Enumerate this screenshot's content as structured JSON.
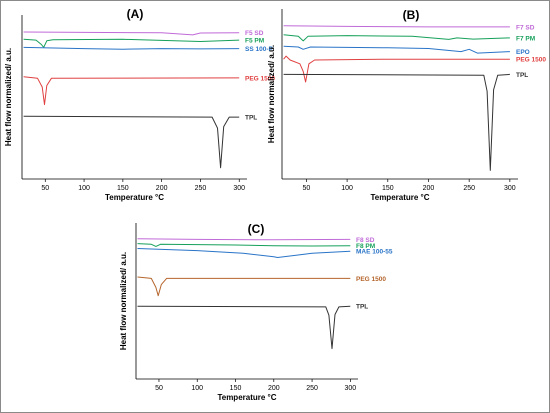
{
  "chart_data": [
    {
      "type": "line",
      "panel_label": "(A)",
      "xlabel": "Temperature °C",
      "ylabel": "Heat flow normalized/ a.u.",
      "xlim": [
        20,
        310
      ],
      "xticks": [
        50,
        100,
        150,
        200,
        250,
        300
      ],
      "grid": false,
      "series": [
        {
          "name": "F5 SD",
          "color": "#c06ad8",
          "x": [
            22,
            100,
            200,
            240,
            250,
            300
          ],
          "y": [
            9.75,
            9.72,
            9.7,
            9.55,
            9.68,
            9.7
          ]
        },
        {
          "name": "F5 PM",
          "color": "#16a05a",
          "x": [
            22,
            38,
            45,
            48,
            52,
            60,
            150,
            250,
            300
          ],
          "y": [
            9.25,
            9.2,
            8.9,
            8.7,
            9.15,
            9.22,
            9.25,
            9.1,
            9.2
          ]
        },
        {
          "name": "SS 100-P",
          "color": "#2a74c8",
          "x": [
            22,
            100,
            150,
            200,
            250,
            300
          ],
          "y": [
            8.7,
            8.62,
            8.58,
            8.62,
            8.6,
            8.62
          ]
        },
        {
          "name": "PEG 1500",
          "color": "#e04040",
          "x": [
            22,
            40,
            46,
            49,
            52,
            58,
            300
          ],
          "y": [
            6.7,
            6.6,
            6.0,
            4.8,
            6.1,
            6.6,
            6.62
          ]
        },
        {
          "name": "TPL",
          "color": "#333333",
          "x": [
            22,
            265,
            272,
            276,
            280,
            287,
            300
          ],
          "y": [
            4.0,
            3.95,
            3.2,
            0.5,
            3.3,
            3.95,
            3.95
          ]
        }
      ]
    },
    {
      "type": "line",
      "panel_label": "(B)",
      "xlabel": "Temperature °C",
      "ylabel": "Heat flow normalized/ a.u.",
      "xlim": [
        20,
        310
      ],
      "xticks": [
        50,
        100,
        150,
        200,
        250,
        300
      ],
      "grid": false,
      "series": [
        {
          "name": "F7 SD",
          "color": "#c06ad8",
          "x": [
            22,
            100,
            200,
            300
          ],
          "y": [
            9.8,
            9.75,
            9.72,
            9.72
          ]
        },
        {
          "name": "F7 PM",
          "color": "#16a05a",
          "x": [
            22,
            40,
            46,
            52,
            100,
            180,
            225,
            235,
            255,
            300
          ],
          "y": [
            9.2,
            9.1,
            8.8,
            9.1,
            9.15,
            9.1,
            8.9,
            9.0,
            8.92,
            9.0
          ]
        },
        {
          "name": "EPO",
          "color": "#2a74c8",
          "x": [
            22,
            40,
            46,
            55,
            150,
            200,
            240,
            250,
            260,
            300
          ],
          "y": [
            8.45,
            8.4,
            8.25,
            8.4,
            8.35,
            8.3,
            8.1,
            8.25,
            8.0,
            8.1
          ]
        },
        {
          "name": "PEG 1500",
          "color": "#e04040",
          "x": [
            22,
            25,
            30,
            42,
            46,
            49,
            53,
            60,
            150,
            300
          ],
          "y": [
            7.6,
            7.8,
            7.55,
            7.3,
            6.8,
            6.1,
            7.3,
            7.55,
            7.6,
            7.6
          ]
        },
        {
          "name": "TPL",
          "color": "#333333",
          "x": [
            22,
            268,
            272,
            276,
            280,
            285,
            300
          ],
          "y": [
            6.6,
            6.55,
            5.5,
            0.3,
            5.6,
            6.55,
            6.6
          ]
        }
      ]
    },
    {
      "type": "line",
      "panel_label": "(C)",
      "xlabel": "Temperature °C",
      "ylabel": "Heat flow normalized/ a.u.",
      "xlim": [
        20,
        310
      ],
      "xticks": [
        50,
        100,
        150,
        200,
        250,
        300
      ],
      "grid": false,
      "series": [
        {
          "name": "F8 SD",
          "color": "#c06ad8",
          "x": [
            22,
            100,
            200,
            300
          ],
          "y": [
            9.8,
            9.75,
            9.72,
            9.75
          ]
        },
        {
          "name": "F8 PM",
          "color": "#16a05a",
          "x": [
            22,
            40,
            46,
            52,
            150,
            200,
            250,
            300
          ],
          "y": [
            9.45,
            9.4,
            9.25,
            9.4,
            9.35,
            9.3,
            9.28,
            9.3
          ]
        },
        {
          "name": "MAE 100-55",
          "color": "#2a74c8",
          "x": [
            22,
            100,
            160,
            200,
            205,
            250,
            300
          ],
          "y": [
            9.1,
            8.95,
            8.75,
            8.5,
            8.45,
            8.75,
            8.9
          ]
        },
        {
          "name": "PEG 1500",
          "color": "#b5652c",
          "x": [
            22,
            40,
            46,
            49,
            53,
            60,
            300
          ],
          "y": [
            7.05,
            6.95,
            6.3,
            5.7,
            6.5,
            6.95,
            6.95
          ]
        },
        {
          "name": "TPL",
          "color": "#333333",
          "x": [
            22,
            268,
            272,
            276,
            280,
            285,
            300
          ],
          "y": [
            4.95,
            4.9,
            4.3,
            1.9,
            4.35,
            4.9,
            4.95
          ]
        }
      ]
    }
  ]
}
